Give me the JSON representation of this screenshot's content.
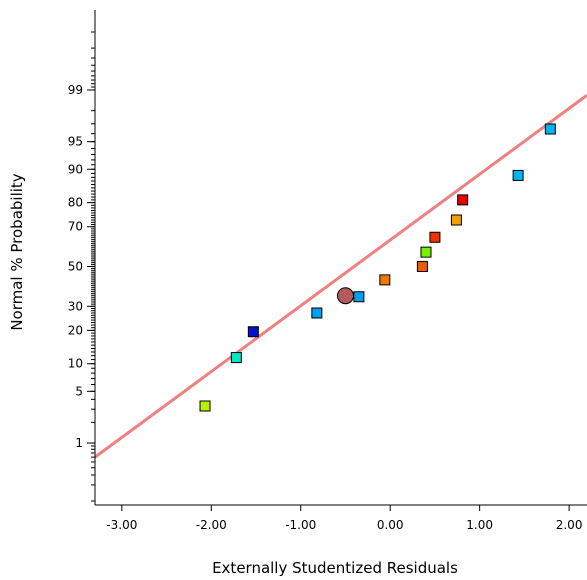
{
  "chart_data": {
    "type": "scatter",
    "title": "",
    "xlabel": "Externally Studentized Residuals",
    "ylabel": "Normal % Probability",
    "xlim": [
      -3.3,
      2.2
    ],
    "ylim_percent": [
      0.3,
      99.7
    ],
    "y_scale": "normal-probability",
    "x_ticks": [
      -3.0,
      -2.0,
      -1.0,
      0.0,
      1.0,
      2.0
    ],
    "x_tick_labels": [
      "-3.00",
      "-2.00",
      "-1.00",
      "0.00",
      "1.00",
      "2.00"
    ],
    "y_ticks": [
      1,
      5,
      10,
      20,
      30,
      50,
      70,
      80,
      90,
      95,
      99
    ],
    "y_tick_labels": [
      "1",
      "5",
      "10",
      "20",
      "30",
      "50",
      "70",
      "80",
      "90",
      "95",
      "99"
    ],
    "grid": false,
    "fit_line": {
      "color": "#f08080",
      "points": [
        [
          -3.3,
          0.6
        ],
        [
          2.2,
          98.8
        ]
      ]
    },
    "points": [
      {
        "x": -2.07,
        "y": 3.3,
        "color": "#b4f000",
        "marker": "square"
      },
      {
        "x": -1.72,
        "y": 11.5,
        "color": "#00e6c8",
        "marker": "square"
      },
      {
        "x": -1.53,
        "y": 19.5,
        "color": "#0014c8",
        "marker": "square"
      },
      {
        "x": -0.82,
        "y": 27.0,
        "color": "#00a0f0",
        "marker": "square"
      },
      {
        "x": -0.5,
        "y": 35.0,
        "color": "#b45a5a",
        "marker": "circle"
      },
      {
        "x": -0.35,
        "y": 34.5,
        "color": "#00a0f0",
        "marker": "square"
      },
      {
        "x": -0.06,
        "y": 43.0,
        "color": "#f07800",
        "marker": "square"
      },
      {
        "x": 0.36,
        "y": 50.0,
        "color": "#f05a00",
        "marker": "square"
      },
      {
        "x": 0.4,
        "y": 57.5,
        "color": "#78f000",
        "marker": "square"
      },
      {
        "x": 0.5,
        "y": 65.0,
        "color": "#f03200",
        "marker": "square"
      },
      {
        "x": 0.74,
        "y": 73.0,
        "color": "#f0a000",
        "marker": "square"
      },
      {
        "x": 0.81,
        "y": 81.0,
        "color": "#e60000",
        "marker": "square"
      },
      {
        "x": 1.43,
        "y": 88.5,
        "color": "#00b4f0",
        "marker": "square"
      },
      {
        "x": 1.79,
        "y": 96.5,
        "color": "#00b4f0",
        "marker": "square"
      }
    ]
  }
}
